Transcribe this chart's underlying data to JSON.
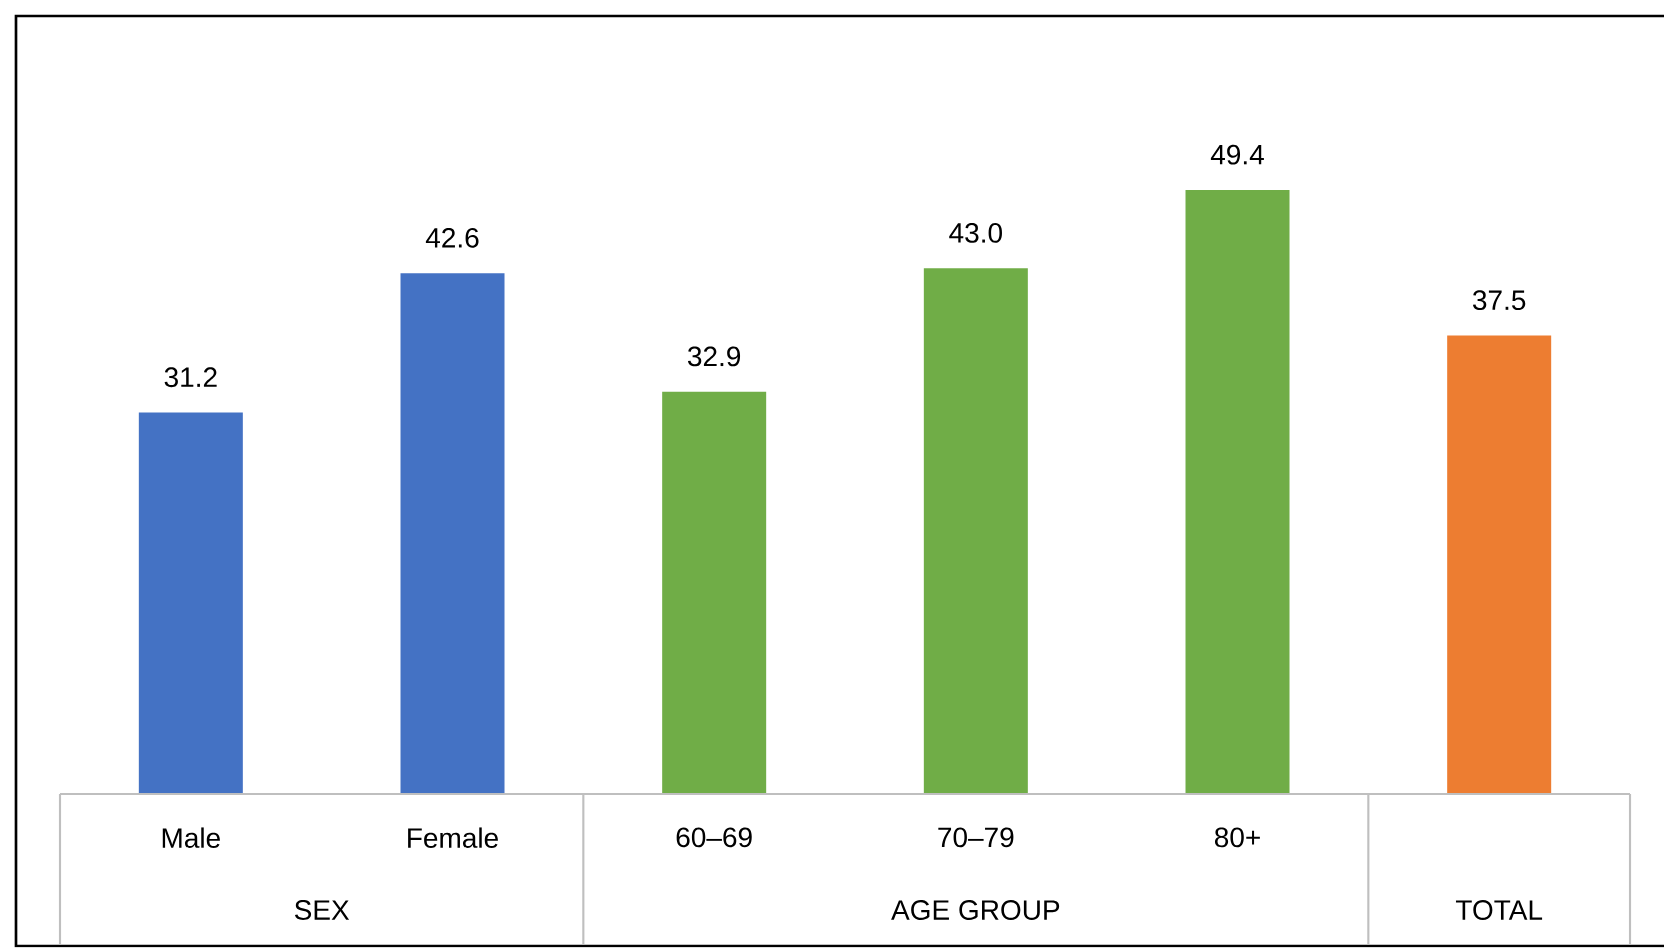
{
  "chart_data": {
    "type": "bar",
    "categories": [
      "Male",
      "Female",
      "60–69",
      "70–79",
      "80+",
      null
    ],
    "values": [
      31.2,
      42.6,
      32.9,
      43.0,
      49.4,
      37.5
    ],
    "value_labels": [
      "31.2",
      "42.6",
      "32.9",
      "43.0",
      "49.4",
      "37.5"
    ],
    "colors": [
      "#4472c4",
      "#4472c4",
      "#70ad47",
      "#70ad47",
      "#70ad47",
      "#ed7d31"
    ],
    "annotations": [
      "SEX",
      "AGE GROUP",
      "TOTAL"
    ]
  }
}
